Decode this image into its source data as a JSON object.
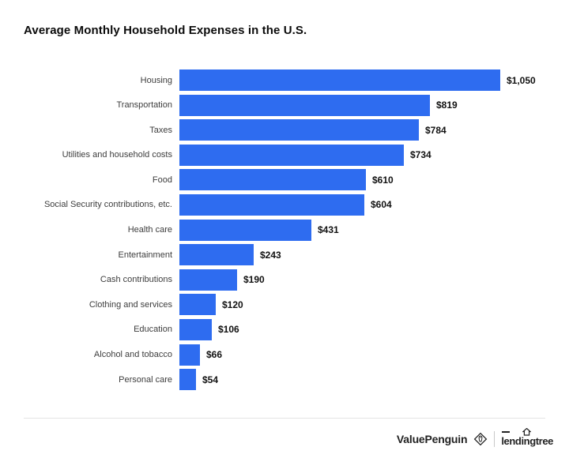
{
  "title": "Average Monthly Household Expenses in the U.S.",
  "chart_data": {
    "type": "bar",
    "orientation": "horizontal",
    "title": "Average Monthly Household Expenses in the U.S.",
    "categories": [
      "Housing",
      "Transportation",
      "Taxes",
      "Utilities and household costs",
      "Food",
      "Social Security contributions, etc.",
      "Health care",
      "Entertainment",
      "Cash contributions",
      "Clothing and services",
      "Education",
      "Alcohol and tobacco",
      "Personal care"
    ],
    "values": [
      1050,
      819,
      784,
      734,
      610,
      604,
      431,
      243,
      190,
      120,
      106,
      66,
      54
    ],
    "value_labels": [
      "$1,050",
      "$819",
      "$784",
      "$734",
      "$610",
      "$604",
      "$431",
      "$243",
      "$190",
      "$120",
      "$106",
      "$66",
      "$54"
    ],
    "xlabel": "",
    "ylabel": "",
    "xlim": [
      0,
      1050
    ],
    "grid": false,
    "legend": false,
    "bar_color": "#2E6CF0",
    "label_color": "#3d3d3d",
    "value_color": "#111111"
  },
  "footer": {
    "brand_left": "ValuePenguin",
    "brand_right": "lendingtree"
  }
}
